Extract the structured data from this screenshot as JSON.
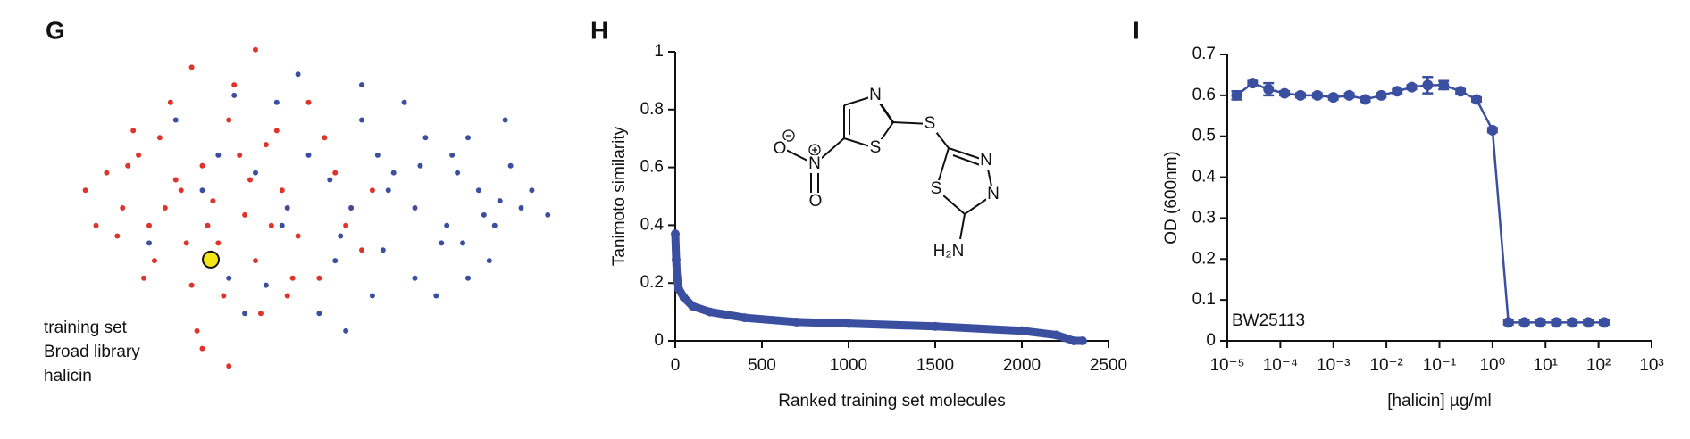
{
  "chart_data": [
    {
      "type": "scatter",
      "panel": "G",
      "xlim": [
        0,
        100
      ],
      "ylim": [
        0,
        100
      ],
      "series": [
        {
          "name": "Broad library",
          "color": "#e0332a",
          "text_color": "#e0332a",
          "size": 3,
          "x": [
            8,
            12,
            15,
            18,
            20,
            22,
            25,
            27,
            30,
            32,
            35,
            38,
            40,
            42,
            45,
            48,
            50,
            52,
            55,
            58,
            60,
            14,
            17,
            21,
            24,
            28,
            31,
            34,
            37,
            41,
            44,
            47,
            26,
            29,
            33,
            36,
            39,
            23,
            19,
            16,
            43,
            46,
            53,
            57,
            62,
            10,
            30,
            35,
            28,
            40
          ],
          "values": [
            55,
            60,
            50,
            65,
            45,
            70,
            58,
            40,
            62,
            52,
            75,
            48,
            35,
            68,
            55,
            42,
            80,
            30,
            60,
            50,
            38,
            42,
            72,
            35,
            80,
            28,
            45,
            25,
            65,
            20,
            72,
            30,
            55,
            15,
            40,
            85,
            58,
            50,
            30,
            62,
            45,
            25,
            70,
            45,
            55,
            45,
            10,
            5,
            90,
            95
          ]
        },
        {
          "name": "training set",
          "color": "#3b4fa0",
          "text_color": "#3b4fa0",
          "size": 3,
          "x": [
            20,
            25,
            30,
            35,
            40,
            45,
            50,
            55,
            60,
            65,
            70,
            72,
            75,
            78,
            80,
            82,
            85,
            88,
            90,
            95,
            48,
            52,
            58,
            62,
            68,
            74,
            77,
            84,
            87,
            92,
            44,
            38,
            33,
            56,
            64,
            70,
            80,
            86,
            66,
            76,
            54,
            60,
            46,
            42,
            36,
            71,
            79,
            83,
            57,
            63
          ],
          "values": [
            40,
            75,
            55,
            30,
            60,
            45,
            65,
            35,
            75,
            55,
            50,
            70,
            40,
            60,
            30,
            55,
            45,
            62,
            50,
            48,
            88,
            20,
            50,
            25,
            80,
            25,
            65,
            35,
            75,
            55,
            80,
            20,
            65,
            42,
            38,
            30,
            70,
            52,
            60,
            45,
            58,
            85,
            50,
            28,
            82,
            62,
            40,
            48,
            15,
            65
          ]
        },
        {
          "name": "halicin",
          "color": "#f5e616",
          "text_color": "#111111",
          "size": 9,
          "x": [
            31.6
          ],
          "values": [
            35.3
          ]
        }
      ],
      "legend_order": [
        1,
        0,
        2
      ]
    },
    {
      "type": "line",
      "panel": "H",
      "color": "#3b4fa0",
      "xlabel": "Ranked training set molecules",
      "ylabel": "Tanimoto similarity",
      "x": [
        0,
        5,
        10,
        20,
        50,
        100,
        200,
        400,
        700,
        1000,
        1500,
        2000,
        2200,
        2300,
        2350
      ],
      "values": [
        0.37,
        0.28,
        0.22,
        0.18,
        0.15,
        0.12,
        0.1,
        0.08,
        0.065,
        0.06,
        0.05,
        0.035,
        0.02,
        0,
        0
      ],
      "xlim": [
        0,
        2500
      ],
      "ylim": [
        0,
        1
      ],
      "xticks": [
        0,
        500,
        1000,
        1500,
        2000,
        2500
      ],
      "yticks": [
        0,
        0.2,
        0.4,
        0.6,
        0.8,
        1
      ],
      "structure_labels": [
        "N",
        "S",
        "S",
        "N",
        "N",
        "S",
        "H₂N",
        "O",
        "N",
        "O"
      ]
    },
    {
      "type": "errorline",
      "panel": "I",
      "color": "#3b4fa0",
      "log_x": true,
      "xlabel": "[halicin] µg/ml",
      "ylabel": "OD (600nm)",
      "annotation": "BW25113",
      "x": [
        1.5e-05,
        3e-05,
        6e-05,
        0.00012,
        0.00024,
        0.0005,
        0.001,
        0.002,
        0.004,
        0.008,
        0.016,
        0.03,
        0.06,
        0.12,
        0.25,
        0.5,
        1,
        2,
        4,
        8,
        16,
        32,
        64,
        128
      ],
      "values": [
        0.6,
        0.63,
        0.615,
        0.605,
        0.6,
        0.6,
        0.595,
        0.6,
        0.59,
        0.6,
        0.61,
        0.62,
        0.625,
        0.625,
        0.61,
        0.59,
        0.515,
        0.045,
        0.045,
        0.045,
        0.045,
        0.045,
        0.045,
        0.045
      ],
      "errors": [
        0.01,
        0.005,
        0.015,
        0.005,
        0.005,
        0.005,
        0.005,
        0.005,
        0.005,
        0.005,
        0.005,
        0.005,
        0.02,
        0.01,
        0.005,
        0.005,
        0.005,
        0.005,
        0.005,
        0.005,
        0.005,
        0.005,
        0.005,
        0.005
      ],
      "xlim": [
        1e-05,
        1000
      ],
      "ylim": [
        0,
        0.7
      ],
      "xticks": [
        {
          "value": 1e-05,
          "label": "10⁻⁵"
        },
        {
          "value": 0.0001,
          "label": "10⁻⁴"
        },
        {
          "value": 0.001,
          "label": "10⁻³"
        },
        {
          "value": 0.01,
          "label": "10⁻²"
        },
        {
          "value": 0.1,
          "label": "10⁻¹"
        },
        {
          "value": 1,
          "label": "10⁰"
        },
        {
          "value": 10,
          "label": "10¹"
        },
        {
          "value": 100,
          "label": "10²"
        },
        {
          "value": 1000,
          "label": "10³"
        }
      ],
      "yticks": [
        0,
        0.1,
        0.2,
        0.3,
        0.4,
        0.5,
        0.6,
        0.7
      ]
    }
  ]
}
